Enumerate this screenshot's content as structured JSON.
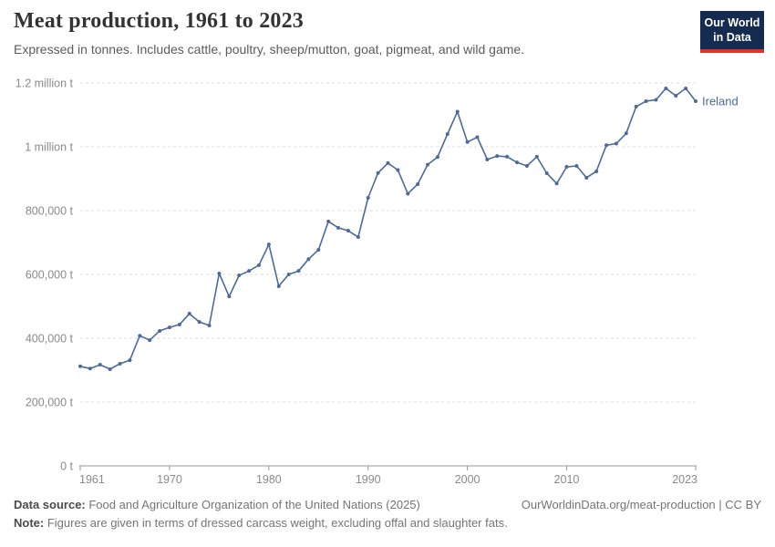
{
  "header": {
    "title": "Meat production, 1961 to 2023",
    "subtitle": "Expressed in tonnes. Includes cattle, poultry, sheep/mutton, goat, pigmeat, and wild game."
  },
  "logo": {
    "line1": "Our World",
    "line2": "in Data",
    "bg_color": "#152c50",
    "bar_color": "#dc352c",
    "text_color": "#ffffff"
  },
  "chart_data": {
    "type": "line",
    "title": "Meat production, 1961 to 2023",
    "entity_label": "Ireland",
    "line_color": "#4C6A9C",
    "axis_color": "#999999",
    "grid_color": "#dddddd",
    "tick_label_color": "#8a8a8a",
    "grid": "dashed",
    "legend_position": "end-of-line",
    "ylim": [
      0,
      1200000
    ],
    "yticks": [
      {
        "value": 0,
        "label": "0 t"
      },
      {
        "value": 200000,
        "label": "200,000 t"
      },
      {
        "value": 400000,
        "label": "400,000 t"
      },
      {
        "value": 600000,
        "label": "600,000 t"
      },
      {
        "value": 800000,
        "label": "800,000 t"
      },
      {
        "value": 1000000,
        "label": "1 million t"
      },
      {
        "value": 1200000,
        "label": "1.2 million t"
      }
    ],
    "xticks": [
      1961,
      1970,
      1980,
      1990,
      2000,
      2010,
      2023
    ],
    "x": [
      1961,
      1962,
      1963,
      1964,
      1965,
      1966,
      1967,
      1968,
      1969,
      1970,
      1971,
      1972,
      1973,
      1974,
      1975,
      1976,
      1977,
      1978,
      1979,
      1980,
      1981,
      1982,
      1983,
      1984,
      1985,
      1986,
      1987,
      1988,
      1989,
      1990,
      1991,
      1992,
      1993,
      1994,
      1995,
      1996,
      1997,
      1998,
      1999,
      2000,
      2001,
      2002,
      2003,
      2004,
      2005,
      2006,
      2007,
      2008,
      2009,
      2010,
      2011,
      2012,
      2013,
      2014,
      2015,
      2016,
      2017,
      2018,
      2019,
      2020,
      2021,
      2022,
      2023
    ],
    "series": [
      {
        "name": "Ireland",
        "values": [
          312000,
          305000,
          317000,
          303000,
          320000,
          331000,
          408000,
          394000,
          423000,
          434000,
          443000,
          477000,
          451000,
          440000,
          603000,
          531000,
          597000,
          611000,
          629000,
          694000,
          563000,
          600000,
          611000,
          648000,
          677000,
          766000,
          746000,
          737000,
          717000,
          840000,
          918000,
          949000,
          927000,
          853000,
          883000,
          944000,
          968000,
          1040000,
          1110000,
          1015000,
          1030000,
          960000,
          971000,
          969000,
          951000,
          940000,
          969000,
          917000,
          885000,
          937000,
          940000,
          903000,
          923000,
          1005000,
          1010000,
          1042000,
          1126000,
          1143000,
          1147000,
          1183000,
          1160000,
          1183000,
          1143000
        ]
      }
    ]
  },
  "footer": {
    "source_label": "Data source:",
    "source_text": " Food and Agriculture Organization of the United Nations (2025)",
    "link_text": "OurWorldinData.org/meat-production | CC BY",
    "note_label": "Note:",
    "note_text": " Figures are given in terms of dressed carcass weight, excluding offal and slaughter fats."
  }
}
